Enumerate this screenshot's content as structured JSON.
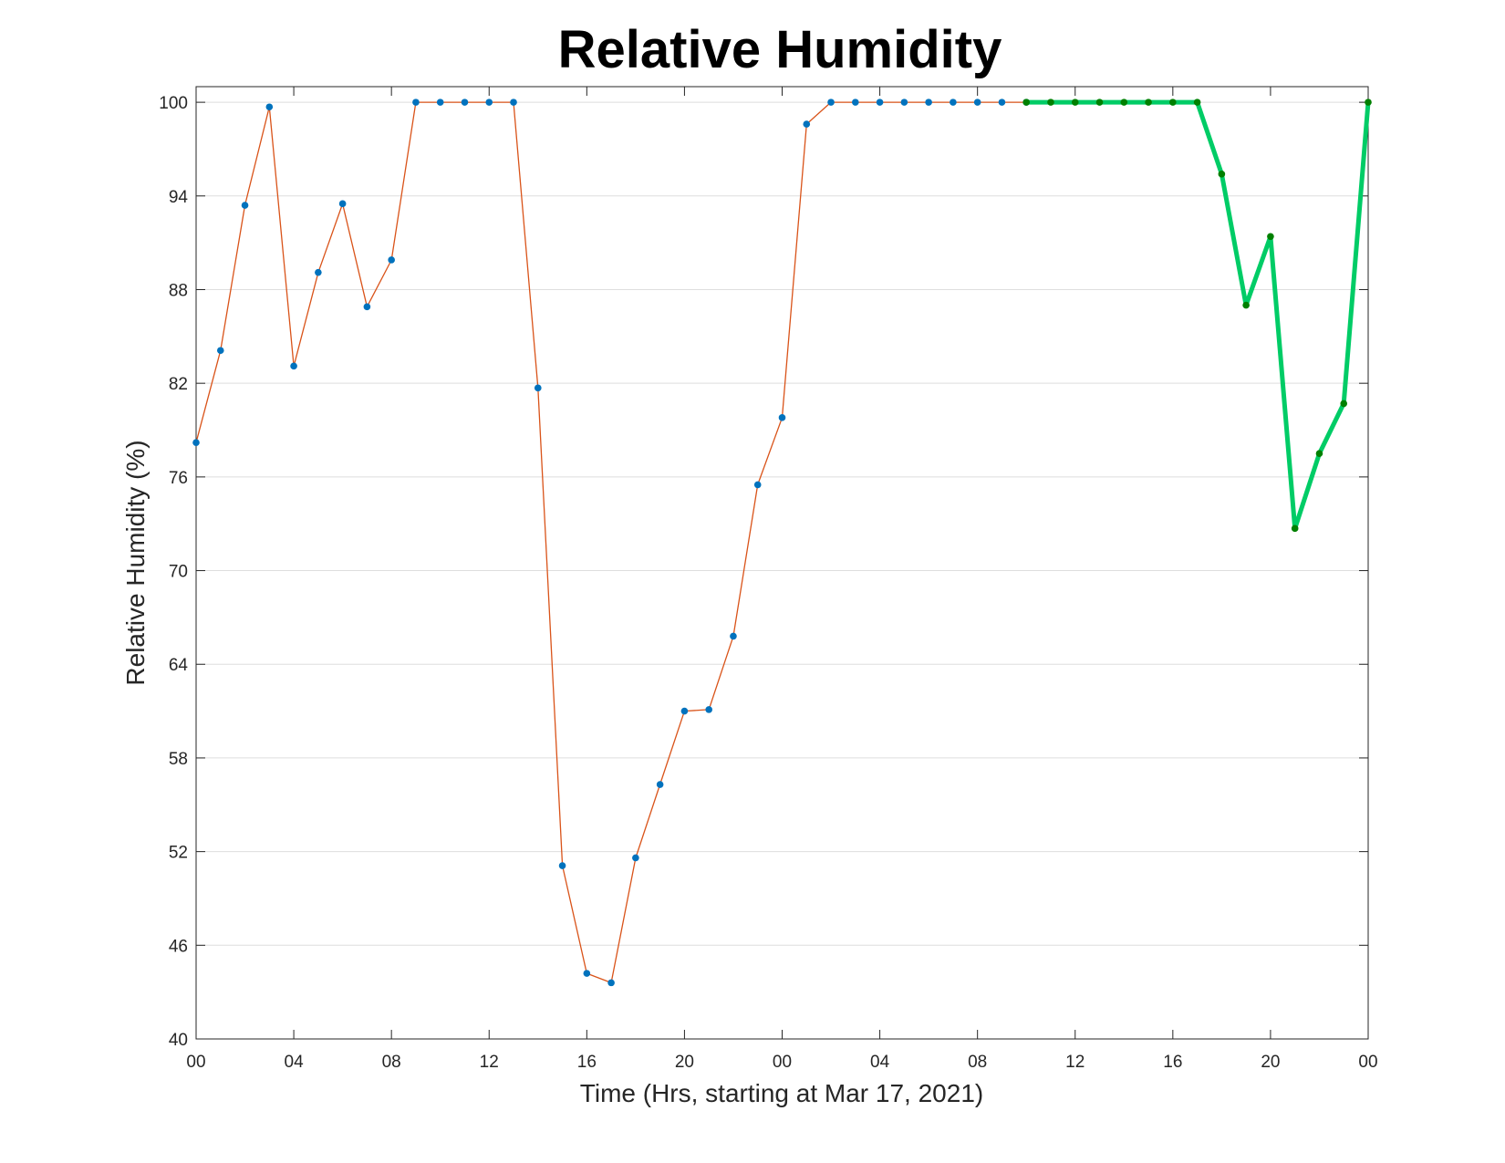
{
  "chart_data": {
    "type": "line",
    "title": "Relative Humidity",
    "xlabel": "Time (Hrs, starting at Mar 17, 2021)",
    "ylabel": "Relative Humidity (%)",
    "xlim": [
      0,
      48
    ],
    "ylim": [
      40,
      101
    ],
    "grid": true,
    "x_ticks": [
      0,
      4,
      8,
      12,
      16,
      20,
      24,
      28,
      32,
      36,
      40,
      44,
      48
    ],
    "x_tick_labels": [
      "00",
      "04",
      "08",
      "12",
      "16",
      "20",
      "00",
      "04",
      "08",
      "12",
      "16",
      "20",
      "00"
    ],
    "y_ticks": [
      40,
      46,
      52,
      58,
      64,
      70,
      76,
      82,
      88,
      94,
      100
    ],
    "y_tick_labels": [
      "40",
      "46",
      "52",
      "58",
      "64",
      "70",
      "76",
      "82",
      "88",
      "94",
      "100"
    ],
    "series": [
      {
        "line_color": "#d95319",
        "marker_color": "#0072bd",
        "x": [
          0,
          1,
          2,
          3,
          4,
          5,
          6,
          7,
          8,
          9,
          10,
          11,
          12,
          13,
          14,
          15,
          16,
          17,
          18,
          19,
          20,
          21,
          22,
          23,
          24,
          25,
          26,
          27,
          28,
          29,
          30,
          31,
          32,
          33,
          34
        ],
        "values": [
          78.2,
          84.1,
          93.4,
          99.7,
          83.1,
          89.1,
          93.5,
          86.9,
          89.9,
          100,
          100,
          100,
          100,
          100,
          81.7,
          51.1,
          44.2,
          43.6,
          51.6,
          56.3,
          61,
          61.1,
          65.8,
          75.5,
          79.8,
          98.6,
          100,
          100,
          100,
          100,
          100,
          100,
          100,
          100,
          100
        ]
      },
      {
        "line_color": "#00cc66",
        "marker_color": "#008000",
        "x": [
          34,
          35,
          36,
          37,
          38,
          39,
          40,
          41,
          42,
          43,
          44,
          45,
          46,
          47,
          48
        ],
        "values": [
          100,
          100,
          100,
          100,
          100,
          100,
          100,
          100,
          95.4,
          87,
          91.4,
          72.7,
          77.5,
          80.7,
          100
        ]
      }
    ]
  }
}
